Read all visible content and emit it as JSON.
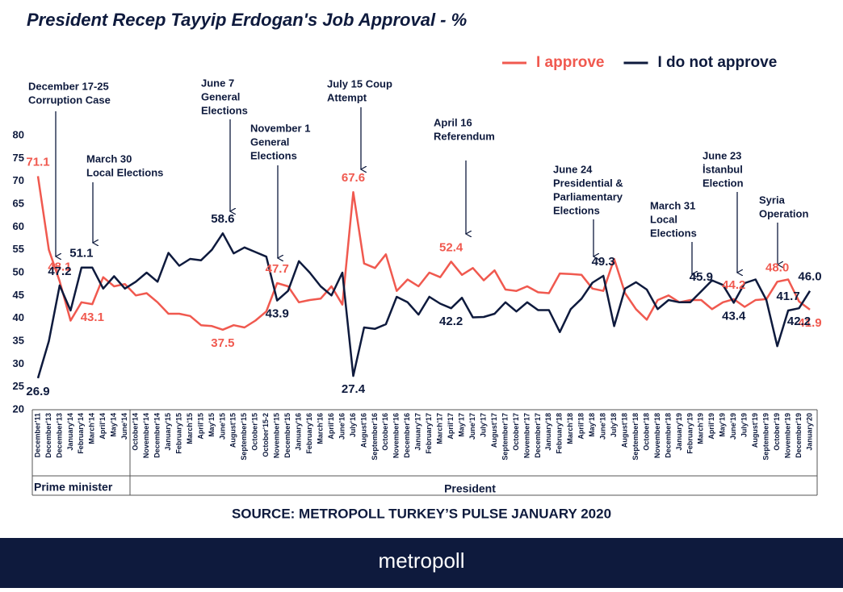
{
  "chart_data": {
    "type": "line",
    "title": "President Recep Tayyip Erdogan's Job Approval - %",
    "categories": [
      "December'11",
      "December'13",
      "December'13",
      "January'14",
      "February'14",
      "March'14",
      "April'14",
      "May'14",
      "June'14",
      "October'14",
      "November'14",
      "December'14",
      "January'15",
      "February'15",
      "March'15",
      "April'15",
      "May'15",
      "June'15",
      "August'15",
      "September'15",
      "October'15",
      "October'15-2",
      "November'15",
      "December'15",
      "January'16",
      "February'16",
      "March'16",
      "April'16",
      "June'16",
      "July'16",
      "August'16",
      "September'16",
      "October'16",
      "November'16",
      "December'16",
      "January'17",
      "February'17",
      "March'17",
      "April'17",
      "May'17",
      "June'17",
      "July'17",
      "August'17",
      "September'17",
      "October'17",
      "November'17",
      "December'17",
      "January'18",
      "February'18",
      "March'18",
      "April'18",
      "May'18",
      "June'18",
      "July'18",
      "August'18",
      "September'18",
      "October'18",
      "November'18",
      "December'18",
      "January'19",
      "February'19",
      "March'19",
      "April'19",
      "May'19",
      "June'19",
      "July'19",
      "August'19",
      "September'19",
      "October'19",
      "November'19",
      "December'19",
      "January'20"
    ],
    "series": [
      {
        "name": "I approve",
        "color": "#f0594f",
        "values": [
          71.1,
          55,
          48.1,
          39.5,
          43.5,
          43.1,
          49,
          47,
          47.5,
          45,
          45.5,
          43.5,
          41,
          41,
          40.5,
          38.5,
          38.3,
          37.5,
          38.5,
          38,
          39.5,
          41.5,
          47.7,
          47,
          43.5,
          44,
          44.3,
          47,
          43,
          67.6,
          52,
          51,
          54,
          46,
          48.5,
          47,
          50,
          49,
          52.4,
          49.5,
          51,
          48.3,
          50.5,
          46.3,
          46,
          47,
          45.7,
          45.5,
          49.8,
          49.7,
          49.5,
          46.5,
          46,
          53,
          45.5,
          42,
          39.7,
          44,
          45,
          43.5,
          44,
          44,
          42,
          43.5,
          44.2,
          42.5,
          44,
          44.2,
          48.0,
          48.5,
          43.7,
          41.9
        ],
        "value_labels": [
          "71.1",
          null,
          "48.1",
          null,
          null,
          "43.1",
          null,
          null,
          null,
          null,
          null,
          null,
          null,
          null,
          null,
          null,
          null,
          "37.5",
          null,
          null,
          null,
          null,
          "47.7",
          null,
          null,
          null,
          null,
          null,
          null,
          "67.6",
          null,
          null,
          null,
          null,
          null,
          null,
          null,
          null,
          "52.4",
          null,
          null,
          null,
          null,
          null,
          null,
          null,
          null,
          null,
          null,
          null,
          null,
          null,
          null,
          null,
          null,
          null,
          null,
          null,
          null,
          null,
          null,
          null,
          null,
          null,
          "44.2",
          null,
          null,
          null,
          "48.0",
          null,
          null,
          "41.9"
        ]
      },
      {
        "name": "I do not approve",
        "color": "#0e1a3d",
        "values": [
          26.9,
          35,
          47.2,
          41.7,
          51.1,
          51.1,
          46.5,
          49.2,
          46.5,
          48,
          50,
          48,
          54.3,
          51.5,
          53,
          52.7,
          55,
          58.6,
          54.2,
          55.5,
          54.5,
          53.5,
          43.9,
          46,
          52.5,
          50,
          47,
          45,
          50,
          27.4,
          38,
          37.7,
          38.7,
          44.7,
          43.5,
          40.8,
          44.7,
          43.2,
          42.2,
          44.5,
          40.2,
          40.3,
          41,
          43.5,
          41.5,
          43.5,
          41.8,
          41.8,
          37,
          42,
          44.3,
          47.8,
          49.3,
          38.3,
          46.5,
          47.9,
          46.3,
          42,
          44,
          43.5,
          43.5,
          45.9,
          48.3,
          47.3,
          43.4,
          47.7,
          48.5,
          44,
          33.9,
          41.7,
          42.2,
          46.0
        ],
        "value_labels": [
          "26.9",
          null,
          "47.2",
          null,
          "51.1",
          null,
          null,
          null,
          null,
          null,
          null,
          null,
          null,
          null,
          null,
          null,
          null,
          "58.6",
          null,
          null,
          null,
          null,
          "43.9",
          null,
          null,
          null,
          null,
          null,
          null,
          "27.4",
          null,
          null,
          null,
          null,
          null,
          null,
          null,
          null,
          "42.2",
          null,
          null,
          null,
          null,
          null,
          null,
          null,
          null,
          null,
          null,
          null,
          null,
          null,
          "49.3",
          null,
          null,
          null,
          null,
          null,
          null,
          null,
          null,
          "45.9",
          null,
          null,
          "43.4",
          null,
          null,
          null,
          null,
          "41.7",
          "42.2",
          "46.0"
        ]
      }
    ],
    "ylim": [
      20,
      80
    ],
    "yticks": [
      20,
      25,
      30,
      35,
      40,
      45,
      50,
      55,
      60,
      65,
      70,
      75,
      80
    ],
    "grid": false,
    "legend": "top-right",
    "annotations": [
      [
        "December 17-25",
        "Corruption Case"
      ],
      [
        "March 30",
        "Local Elections"
      ],
      [
        "June 7",
        "General",
        "Elections"
      ],
      [
        "November 1",
        "General",
        "Elections"
      ],
      [
        "July 15 Coup",
        "Attempt"
      ],
      [
        "April 16",
        "Referendum"
      ],
      [
        "June 24",
        "Presidential &",
        "Parliamentary",
        "Elections"
      ],
      [
        "March 31",
        "Local",
        "Elections"
      ],
      [
        "June 23",
        "İstanbul",
        "Election"
      ],
      [
        "Syria",
        "Operation"
      ]
    ],
    "period_labels": [
      "Prime minister",
      "President"
    ],
    "source": "SOURCE: METROPOLL TURKEY’S PULSE JANUARY 2020",
    "brand": "metropoll"
  }
}
